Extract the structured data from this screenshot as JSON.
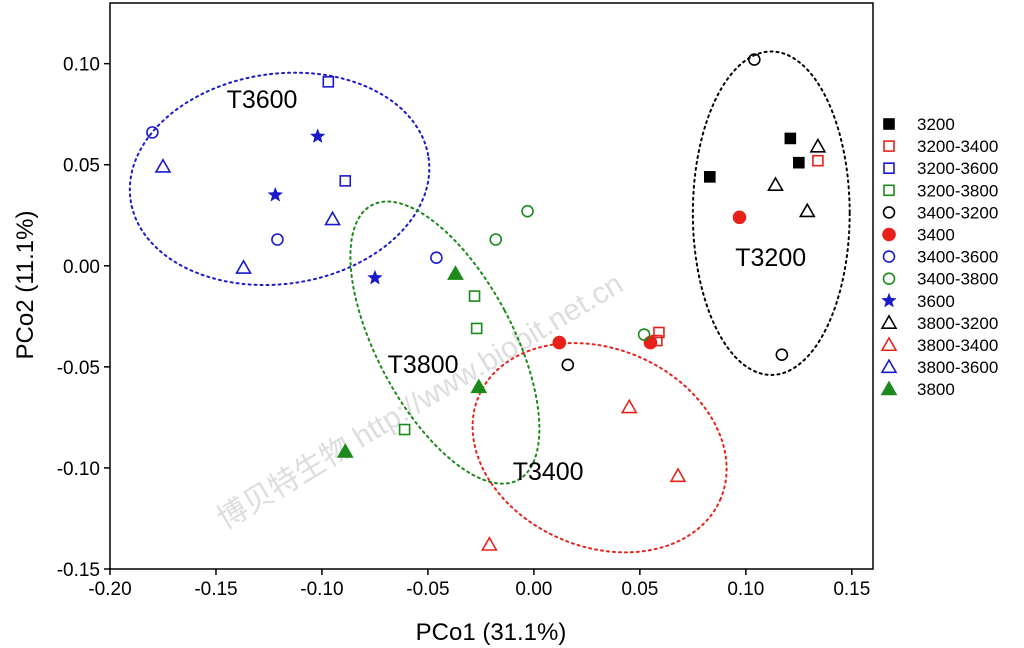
{
  "chart_data": {
    "type": "scatter",
    "title": "",
    "xlabel": "PCo1 (31.1%)",
    "ylabel": "PCo2 (11.1%)",
    "xlim": [
      -0.2,
      0.16
    ],
    "ylim": [
      -0.15,
      0.13
    ],
    "xticks": [
      -0.2,
      -0.15,
      -0.1,
      -0.05,
      0.0,
      0.05,
      0.1,
      0.15
    ],
    "xtick_labels": [
      "-0.20",
      "-0.15",
      "-0.10",
      "-0.05",
      "0.00",
      "0.05",
      "0.10",
      "0.15"
    ],
    "yticks": [
      -0.15,
      -0.1,
      -0.05,
      0.0,
      0.05,
      0.1
    ],
    "ytick_labels": [
      "-0.15",
      "-0.10",
      "-0.05",
      "0.00",
      "0.05",
      "0.10"
    ],
    "grid": false,
    "legend_position": "right",
    "watermark": "博贝特生物 http://www.biobit.net.cn",
    "series": [
      {
        "name": "3200",
        "marker": "square",
        "filled": true,
        "color": "#000000",
        "points": [
          [
            0.083,
            0.044
          ],
          [
            0.121,
            0.063
          ],
          [
            0.125,
            0.051
          ]
        ]
      },
      {
        "name": "3200-3400",
        "marker": "square",
        "filled": false,
        "color": "#e8221b",
        "points": [
          [
            0.134,
            0.052
          ],
          [
            0.058,
            -0.037
          ],
          [
            0.059,
            -0.033
          ]
        ]
      },
      {
        "name": "3200-3600",
        "marker": "square",
        "filled": false,
        "color": "#1a1acc",
        "points": [
          [
            -0.097,
            0.091
          ],
          [
            -0.089,
            0.042
          ]
        ]
      },
      {
        "name": "3200-3800",
        "marker": "square",
        "filled": false,
        "color": "#1b8a1b",
        "points": [
          [
            -0.028,
            -0.015
          ],
          [
            -0.027,
            -0.031
          ],
          [
            -0.061,
            -0.081
          ]
        ]
      },
      {
        "name": "3400-3200",
        "marker": "circle",
        "filled": false,
        "color": "#000000",
        "points": [
          [
            0.104,
            0.102
          ],
          [
            0.117,
            -0.044
          ],
          [
            0.016,
            -0.049
          ]
        ]
      },
      {
        "name": "3400",
        "marker": "circle",
        "filled": true,
        "color": "#e8221b",
        "points": [
          [
            0.097,
            0.024
          ],
          [
            0.055,
            -0.038
          ],
          [
            0.012,
            -0.038
          ]
        ]
      },
      {
        "name": "3400-3600",
        "marker": "circle",
        "filled": false,
        "color": "#1a1acc",
        "points": [
          [
            -0.18,
            0.066
          ],
          [
            -0.121,
            0.013
          ],
          [
            -0.046,
            0.004
          ]
        ]
      },
      {
        "name": "3400-3800",
        "marker": "circle",
        "filled": false,
        "color": "#1b8a1b",
        "points": [
          [
            -0.003,
            0.027
          ],
          [
            -0.018,
            0.013
          ],
          [
            0.052,
            -0.034
          ]
        ]
      },
      {
        "name": "3600",
        "marker": "star",
        "filled": true,
        "color": "#1a1acc",
        "points": [
          [
            -0.102,
            0.064
          ],
          [
            -0.122,
            0.035
          ],
          [
            -0.075,
            -0.006
          ]
        ]
      },
      {
        "name": "3800-3200",
        "marker": "triangle",
        "filled": false,
        "color": "#000000",
        "points": [
          [
            0.134,
            0.059
          ],
          [
            0.114,
            0.04
          ],
          [
            0.129,
            0.027
          ]
        ]
      },
      {
        "name": "3800-3400",
        "marker": "triangle",
        "filled": false,
        "color": "#e8221b",
        "points": [
          [
            0.045,
            -0.07
          ],
          [
            0.068,
            -0.104
          ],
          [
            -0.021,
            -0.138
          ]
        ]
      },
      {
        "name": "3800-3600",
        "marker": "triangle",
        "filled": false,
        "color": "#1a1acc",
        "points": [
          [
            -0.175,
            0.049
          ],
          [
            -0.137,
            -0.001
          ],
          [
            -0.095,
            0.023
          ]
        ]
      },
      {
        "name": "3800",
        "marker": "triangle",
        "filled": true,
        "color": "#1b8a1b",
        "points": [
          [
            -0.037,
            -0.004
          ],
          [
            -0.026,
            -0.06
          ],
          [
            -0.089,
            -0.092
          ]
        ]
      }
    ],
    "clusters": [
      {
        "label": "T3600",
        "color": "#1a1acc",
        "center": [
          -0.12,
          0.043
        ],
        "radii": [
          0.071,
          0.052
        ],
        "rotation_deg": 8,
        "label_at": [
          -0.145,
          0.078
        ]
      },
      {
        "label": "T3200",
        "color": "#000000",
        "center": [
          0.112,
          0.026
        ],
        "radii": [
          0.037,
          0.08
        ],
        "rotation_deg": 0,
        "label_at": [
          0.095,
          0.0
        ]
      },
      {
        "label": "T3800",
        "color": "#1b8a1b",
        "center": [
          -0.042,
          -0.038
        ],
        "radii": [
          0.032,
          0.077
        ],
        "rotation_deg": 28,
        "label_at": [
          -0.069,
          -0.053
        ]
      },
      {
        "label": "T3400",
        "color": "#e8221b",
        "center": [
          0.031,
          -0.09
        ],
        "radii": [
          0.062,
          0.049
        ],
        "rotation_deg": -23,
        "label_at": [
          -0.01,
          -0.106
        ]
      }
    ]
  }
}
